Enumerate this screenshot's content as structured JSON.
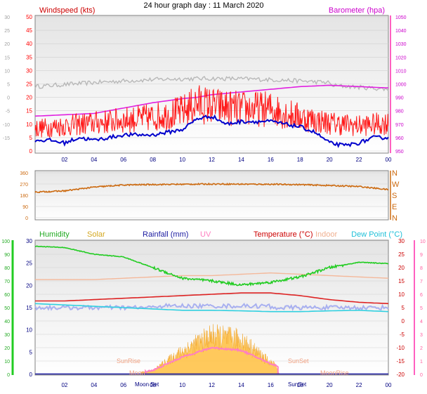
{
  "title": "24 hour graph day : 11 March 2020",
  "colors": {
    "wind_speed": "#ff1a1a",
    "wind_avg": "#0000cc",
    "wind_gust_avg": "#b8b8b8",
    "barometer": "#e020e0",
    "direction": "#cc6a10",
    "humidity": "#22cc22",
    "solar": "#ffc040",
    "rainfall": "#1a1aa0",
    "uv": "#ff80c0",
    "temperature": "#dd2222",
    "indoor": "#f4b89a",
    "dewpoint": "#30d0e0",
    "indoor_band": "#a8b0f0",
    "plot_bg": "#e8e8e8",
    "axis_left_wind": "#ff0000",
    "axis_left_rain": "#000080"
  },
  "time_ticks": [
    "02",
    "04",
    "06",
    "08",
    "10",
    "12",
    "14",
    "16",
    "18",
    "20",
    "22",
    "00"
  ],
  "panel1": {
    "label_left": "Windspeed (kts)",
    "label_right": "Barometer (hpa)",
    "left_ticks_temp": [
      "30",
      "25",
      "20",
      "15",
      "10",
      "5",
      "0",
      "-5",
      "-10",
      "-15"
    ],
    "left_ticks_wind": [
      "50",
      "45",
      "40",
      "35",
      "30",
      "25",
      "20",
      "15",
      "10",
      "5",
      "0"
    ],
    "right_ticks": [
      "1050",
      "1040",
      "1030",
      "1020",
      "1010",
      "1000",
      "990",
      "980",
      "970",
      "960",
      "950"
    ]
  },
  "panel2": {
    "left_ticks": [
      "360",
      "270",
      "180",
      "90",
      "0"
    ],
    "right_ticks": [
      "N",
      "W",
      "S",
      "E",
      "N"
    ]
  },
  "panel3": {
    "legend": {
      "humidity": "Humidity",
      "solar": "Solar",
      "rainfall": "Rainfall (mm)",
      "uv": "UV",
      "temperature": "Temperature (°C)",
      "indoor": "Indoor",
      "dewpoint": "Dew Point (°C)"
    },
    "left_ticks_humidity": [
      "100",
      "90",
      "80",
      "70",
      "60",
      "50",
      "40",
      "30",
      "20",
      "10",
      "0"
    ],
    "left_ticks_rain": [
      "30",
      "25",
      "20",
      "15",
      "10",
      "5",
      "0"
    ],
    "right_ticks_temp": [
      "30",
      "25",
      "20",
      "15",
      "10",
      "5",
      "0",
      "-5",
      "-10",
      "-15",
      "-20"
    ],
    "right_ticks_uv": [
      "10",
      "9",
      "8",
      "7",
      "6",
      "5",
      "4",
      "3",
      "2",
      "1",
      "0"
    ],
    "annotations": {
      "sunrise": "SunRise",
      "sunset": "SunSet",
      "moonset": "Moon Set",
      "moonrise": "MoonRise",
      "moon_left": "Moon",
      "sunset_lower": "SunSet"
    }
  },
  "chart_data": [
    {
      "type": "line",
      "title": "24 hour graph day : 11 March 2020",
      "ylabel": "Windspeed (kts)",
      "y2label": "Barometer (hpa)",
      "x_hours": [
        0,
        2,
        4,
        6,
        8,
        10,
        11,
        12,
        14,
        16,
        18,
        20,
        22,
        24
      ],
      "ylim": [
        0,
        50
      ],
      "y2lim": [
        950,
        1050
      ],
      "series": [
        {
          "name": "Windspeed (kts)",
          "values": [
            8,
            9,
            10,
            11,
            12,
            14,
            17,
            16,
            15,
            15,
            12,
            10,
            9,
            10
          ]
        },
        {
          "name": "Barometer (hpa)",
          "values": [
            976,
            977,
            978,
            982,
            986,
            989,
            990,
            992,
            994,
            996,
            998,
            999,
            998,
            997
          ]
        }
      ]
    },
    {
      "type": "line",
      "ylabel": "",
      "x_hours": [
        0,
        2,
        4,
        6,
        8,
        10,
        12,
        14,
        16,
        18,
        20,
        22,
        24
      ],
      "ylim": [
        0,
        360
      ],
      "series": [
        {
          "name": "",
          "values": [
            205,
            215,
            245,
            262,
            266,
            268,
            270,
            269,
            268,
            265,
            258,
            250,
            225
          ]
        }
      ]
    },
    {
      "type": "line",
      "x_hours": [
        0,
        2,
        4,
        6,
        8,
        10,
        12,
        14,
        16,
        18,
        20,
        22,
        24
      ],
      "ylim": [
        0,
        100
      ],
      "y2lim": [
        -20,
        30
      ],
      "series": [
        {
          "name": "Humidity",
          "values": [
            96,
            95,
            90,
            88,
            80,
            72,
            70,
            67,
            69,
            73,
            80,
            84,
            83
          ]
        },
        {
          "name": "Temperature (°C)",
          "values": [
            7.5,
            7.5,
            8,
            8.5,
            9,
            9.5,
            10,
            10.5,
            10.5,
            9.5,
            8,
            7,
            6.5
          ]
        },
        {
          "name": "Dew Point (°C)",
          "values": [
            6.5,
            6,
            5.5,
            5,
            4.5,
            4,
            4,
            3.8,
            3.5,
            3.5,
            3.8,
            4,
            3.5
          ]
        },
        {
          "name": "Indoor",
          "values": [
            15.5,
            15.5,
            15.5,
            16,
            16.5,
            17,
            17,
            17.5,
            18,
            17.5,
            17,
            16.5,
            16
          ]
        },
        {
          "name": "UV",
          "values": [
            0,
            0,
            0,
            0,
            0.3,
            1.3,
            2,
            1.8,
            0.8,
            0,
            0,
            0,
            0
          ]
        },
        {
          "name": "Solar",
          "values": [
            0,
            0,
            0,
            0,
            1,
            6,
            10,
            9,
            3,
            0,
            0,
            0,
            0
          ]
        },
        {
          "name": "Rainfall (mm)",
          "values": [
            0,
            0,
            0,
            0,
            0,
            0,
            0,
            0,
            0,
            0,
            0,
            0,
            0
          ]
        }
      ]
    }
  ]
}
